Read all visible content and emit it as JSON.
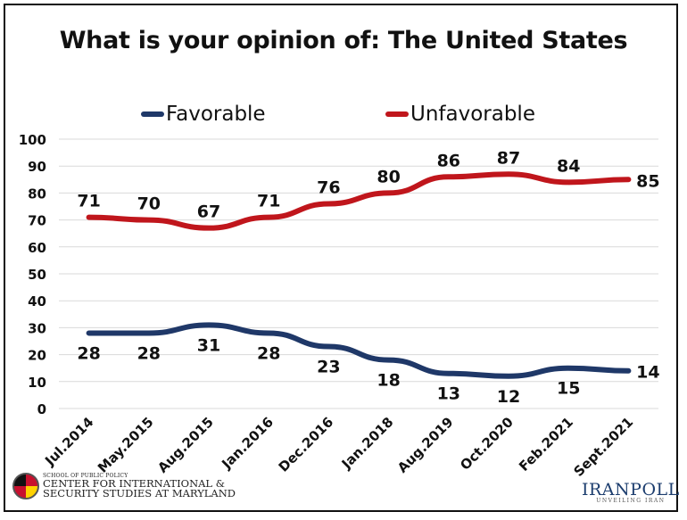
{
  "chart_data": {
    "type": "line",
    "title": "What is your opinion of: The United States",
    "categories": [
      "Jul.2014",
      "May.2015",
      "Aug.2015",
      "Jan.2016",
      "Dec.2016",
      "Jan.2018",
      "Aug.2019",
      "Oct.2020",
      "Feb.2021",
      "Sept.2021"
    ],
    "series": [
      {
        "name": "Favorable",
        "color": "#1f3868",
        "values": [
          28,
          28,
          31,
          28,
          23,
          18,
          13,
          12,
          15,
          14
        ]
      },
      {
        "name": "Unfavorable",
        "color": "#c0161c",
        "values": [
          71,
          70,
          67,
          71,
          76,
          80,
          86,
          87,
          84,
          85
        ]
      }
    ],
    "ylim": [
      0,
      100
    ],
    "yticks": [
      0,
      10,
      20,
      30,
      40,
      50,
      60,
      70,
      80,
      90,
      100
    ],
    "grid": true,
    "legend_position": "top"
  },
  "footer": {
    "left_school": "SCHOOL OF PUBLIC POLICY",
    "left_line1": "CENTER FOR INTERNATIONAL &",
    "left_line2": "SECURITY STUDIES AT MARYLAND",
    "right_brand": "IRANPOLL",
    "right_tagline": "UNVEILING IRAN"
  }
}
